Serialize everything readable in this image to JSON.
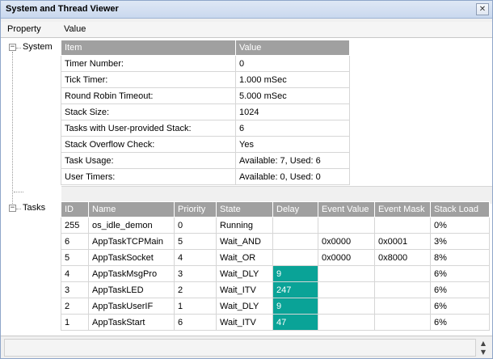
{
  "window": {
    "title": "System and Thread Viewer",
    "close_glyph": "✕"
  },
  "columns": {
    "property": "Property",
    "value": "Value"
  },
  "tree": {
    "system_label": "System",
    "tasks_label": "Tasks",
    "collapse_glyph": "−"
  },
  "system_table": {
    "headers": [
      "Item",
      "Value"
    ],
    "rows": [
      [
        "Timer Number:",
        "0"
      ],
      [
        "Tick Timer:",
        "1.000 mSec"
      ],
      [
        "Round Robin Timeout:",
        "5.000 mSec"
      ],
      [
        "Stack Size:",
        "1024"
      ],
      [
        "Tasks with User-provided Stack:",
        "6"
      ],
      [
        "Stack Overflow Check:",
        "Yes"
      ],
      [
        "Task Usage:",
        "Available: 7, Used: 6"
      ],
      [
        "User Timers:",
        "Available: 0, Used: 0"
      ]
    ]
  },
  "tasks_table": {
    "headers": [
      "ID",
      "Name",
      "Priority",
      "State",
      "Delay",
      "Event Value",
      "Event Mask",
      "Stack Load"
    ],
    "rows": [
      [
        "255",
        "os_idle_demon",
        "0",
        "Running",
        "",
        "",
        "",
        "0%"
      ],
      [
        "6",
        "AppTaskTCPMain",
        "5",
        "Wait_AND",
        "",
        "0x0000",
        "0x0001",
        "3%"
      ],
      [
        "5",
        "AppTaskSocket",
        "4",
        "Wait_OR",
        "",
        "0x0000",
        "0x8000",
        "8%"
      ],
      [
        "4",
        "AppTaskMsgPro",
        "3",
        "Wait_DLY",
        "9",
        "",
        "",
        "6%"
      ],
      [
        "3",
        "AppTaskLED",
        "2",
        "Wait_ITV",
        "247",
        "",
        "",
        "6%"
      ],
      [
        "2",
        "AppTaskUserIF",
        "1",
        "Wait_DLY",
        "9",
        "",
        "",
        "6%"
      ],
      [
        "1",
        "AppTaskStart",
        "6",
        "Wait_ITV",
        "47",
        "",
        "",
        "6%"
      ]
    ],
    "highlight_color": "#0aa397"
  },
  "scroll": {
    "up_glyph": "▲",
    "down_glyph": "▼"
  }
}
